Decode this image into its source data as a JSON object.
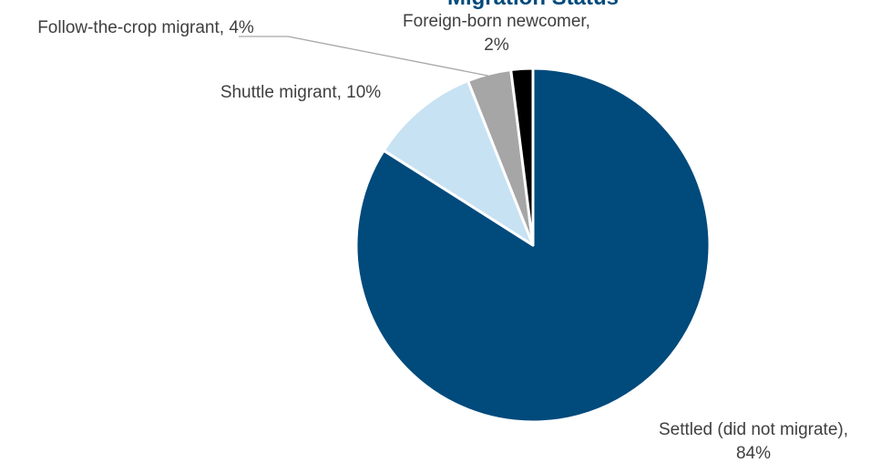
{
  "chart_data": {
    "type": "pie",
    "title": "Migration Status",
    "start_angle_deg": 0,
    "direction": "clockwise",
    "slices": [
      {
        "label": "Settled (did not migrate)",
        "value": 84,
        "value_label": "84%",
        "color": "#004a7c"
      },
      {
        "label": "Shuttle migrant",
        "value": 10,
        "value_label": "10%",
        "color": "#c7e2f3"
      },
      {
        "label": "Follow-the-crop migrant",
        "value": 4,
        "value_label": "4%",
        "color": "#a6a6a6"
      },
      {
        "label": "Foreign-born newcomer",
        "value": 2,
        "value_label": "2%",
        "color": "#000000"
      }
    ],
    "data_labels": [
      {
        "lines": [
          "Settled (did not migrate),",
          "84%"
        ]
      },
      {
        "lines": [
          "Shuttle migrant, 10%"
        ]
      },
      {
        "lines": [
          "Follow-the-crop migrant, 4%"
        ]
      },
      {
        "lines": [
          "Foreign-born newcomer,",
          "2%"
        ]
      }
    ],
    "legend": "none"
  }
}
